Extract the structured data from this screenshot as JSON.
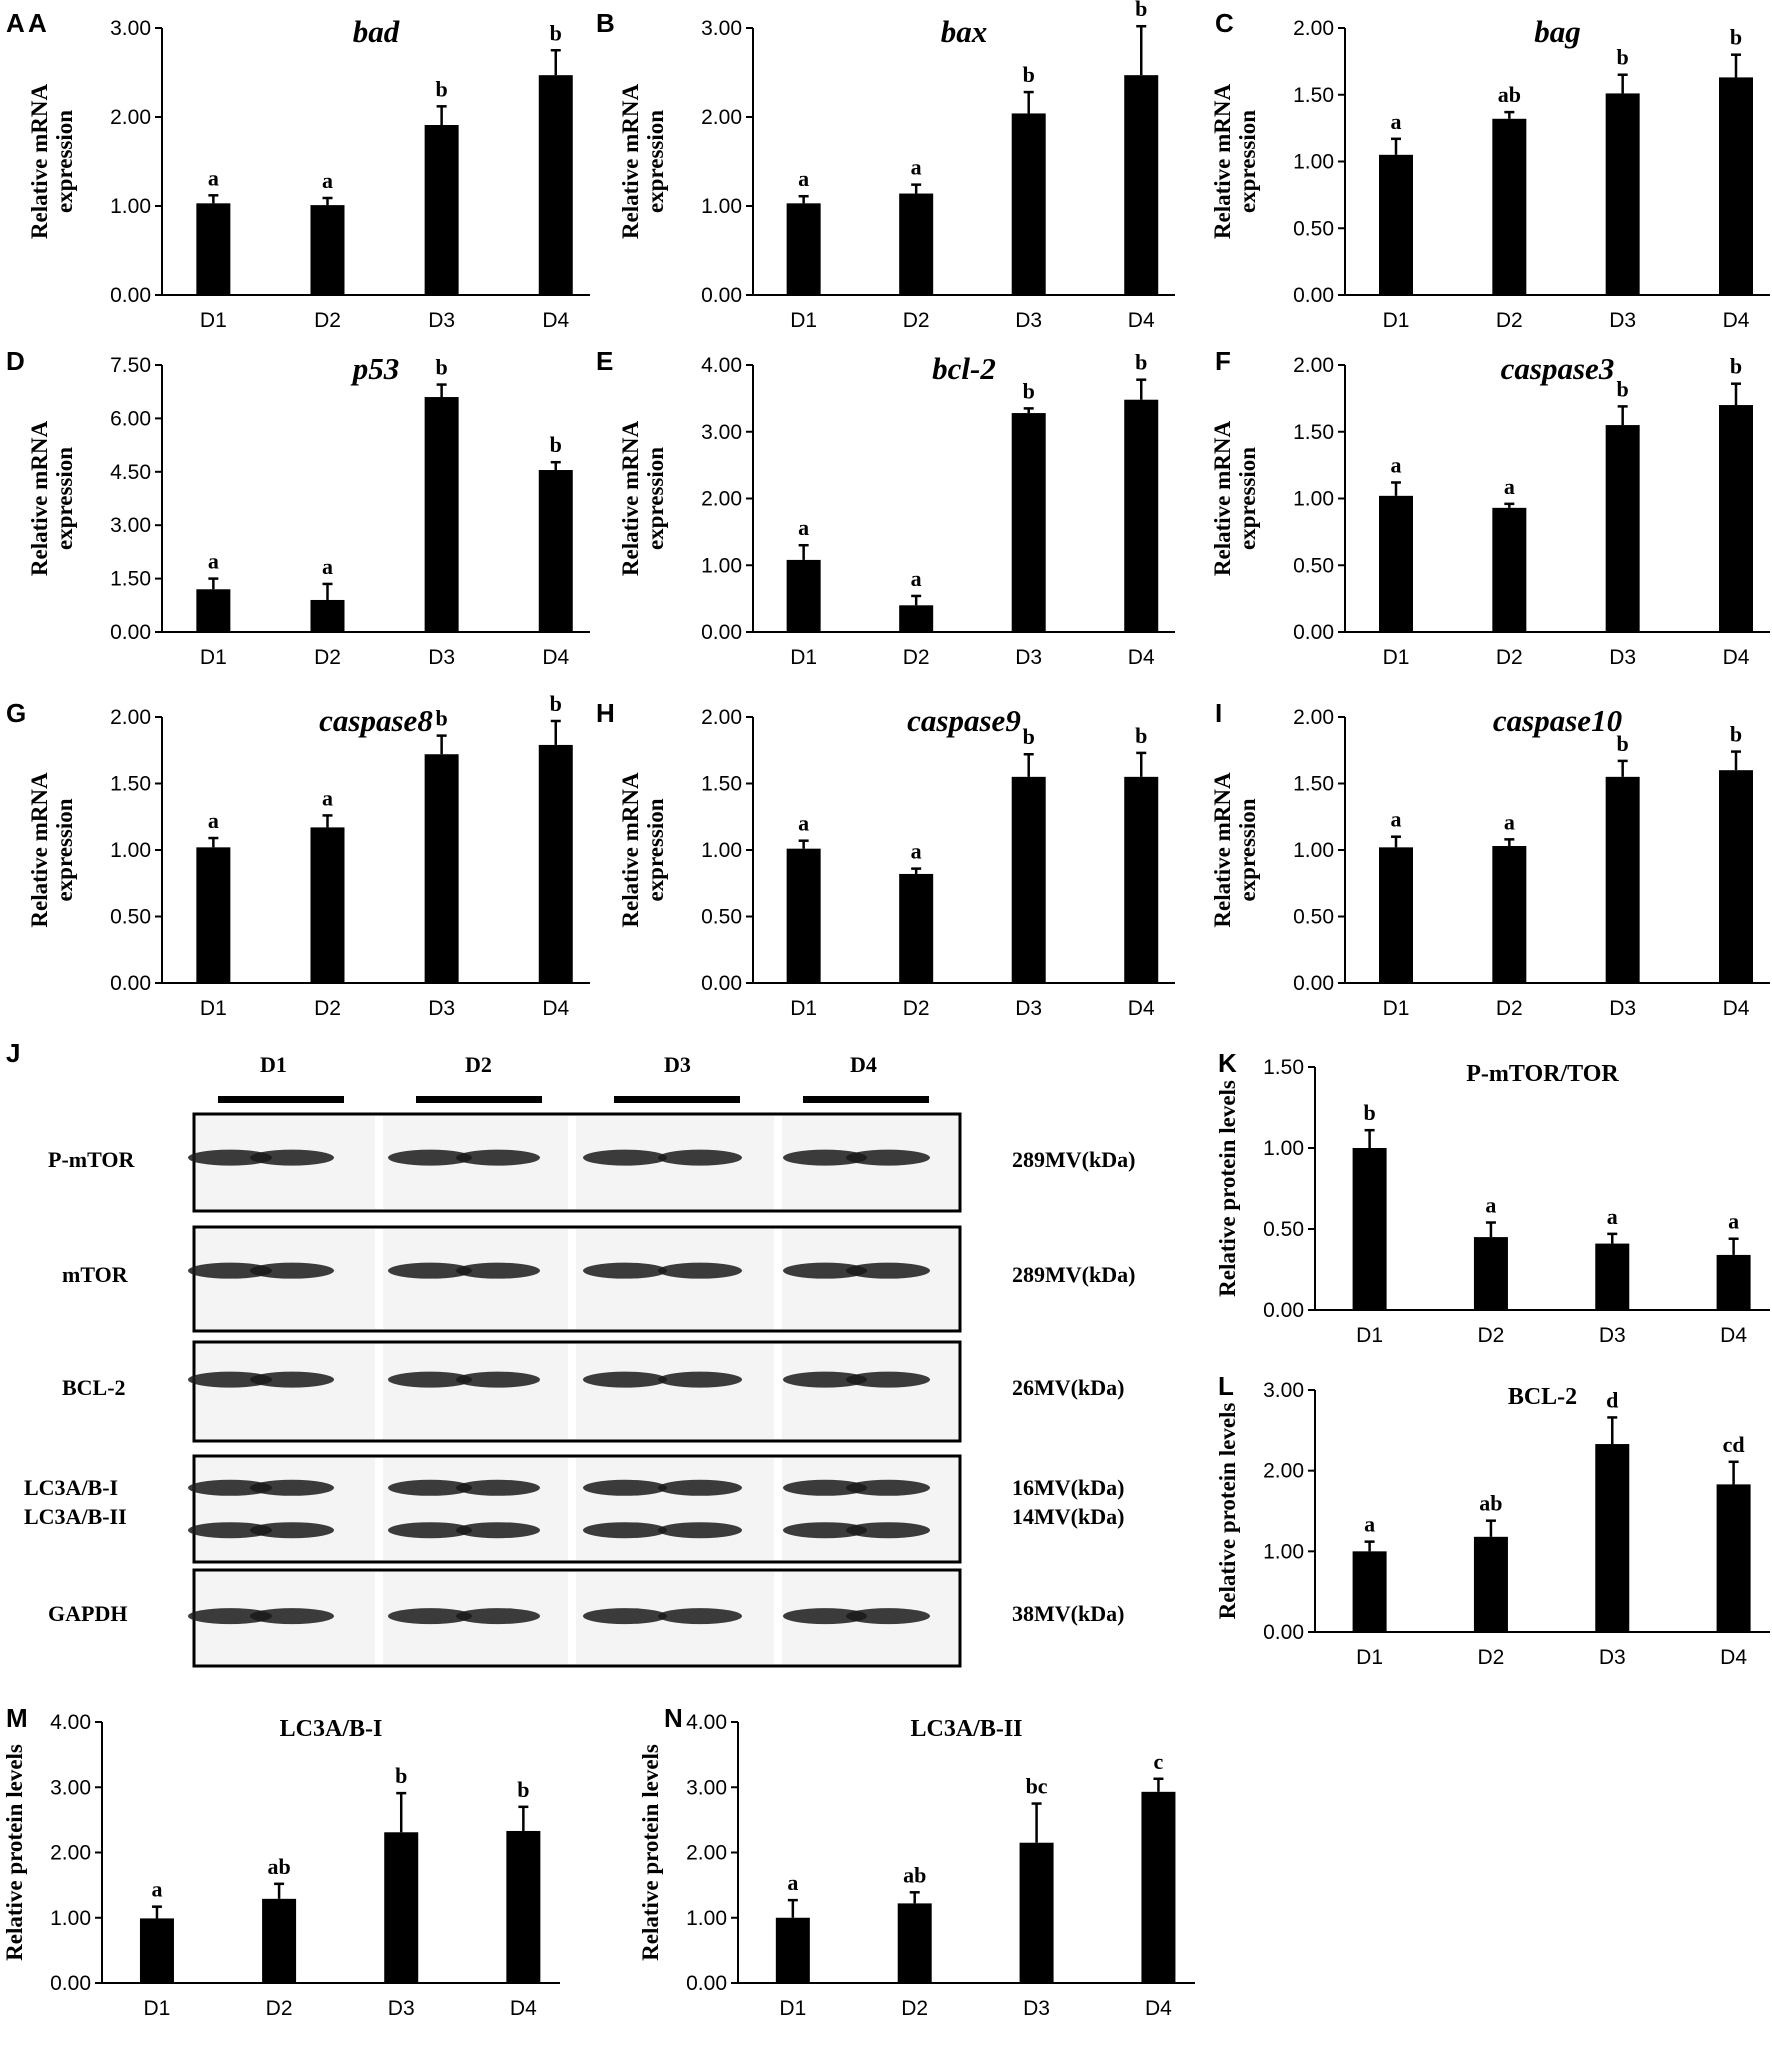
{
  "chart_data": [
    {
      "panel": "A",
      "type": "bar",
      "title": "bad",
      "italic": true,
      "ylabel": [
        "Relative mRNA",
        "expression"
      ],
      "categories": [
        "D1",
        "D2",
        "D3",
        "D4"
      ],
      "values": [
        1.03,
        1.01,
        1.91,
        2.47
      ],
      "errors": [
        0.09,
        0.08,
        0.21,
        0.28
      ],
      "labels": [
        "a",
        "a",
        "b",
        "b"
      ],
      "ylim": [
        0,
        3
      ],
      "yticks": [
        "0.00",
        "1.00",
        "2.00",
        "3.00"
      ]
    },
    {
      "panel": "B",
      "type": "bar",
      "title": "bax",
      "italic": true,
      "ylabel": [
        "Relative mRNA",
        "expression"
      ],
      "categories": [
        "D1",
        "D2",
        "D3",
        "D4"
      ],
      "values": [
        1.03,
        1.14,
        2.04,
        2.47
      ],
      "errors": [
        0.08,
        0.1,
        0.24,
        0.55
      ],
      "labels": [
        "a",
        "a",
        "b",
        "b"
      ],
      "ylim": [
        0,
        3
      ],
      "yticks": [
        "0.00",
        "1.00",
        "2.00",
        "3.00"
      ]
    },
    {
      "panel": "C",
      "type": "bar",
      "title": "bag",
      "italic": true,
      "ylabel": [
        "Relative mRNA",
        "expression"
      ],
      "categories": [
        "D1",
        "D2",
        "D3",
        "D4"
      ],
      "values": [
        1.05,
        1.32,
        1.51,
        1.63
      ],
      "errors": [
        0.12,
        0.05,
        0.14,
        0.17
      ],
      "labels": [
        "a",
        "ab",
        "b",
        "b"
      ],
      "ylim": [
        0,
        2
      ],
      "yticks": [
        "0.00",
        "0.50",
        "1.00",
        "1.50",
        "2.00"
      ]
    },
    {
      "panel": "D",
      "type": "bar",
      "title": "p53",
      "italic": true,
      "ylabel": [
        "Relative mRNA",
        "expression"
      ],
      "categories": [
        "D1",
        "D2",
        "D3",
        "D4"
      ],
      "values": [
        1.2,
        0.9,
        6.6,
        4.55
      ],
      "errors": [
        0.3,
        0.45,
        0.35,
        0.22
      ],
      "labels": [
        "a",
        "a",
        "b",
        "b"
      ],
      "ylim": [
        0,
        7.5
      ],
      "yticks": [
        "0.00",
        "1.50",
        "3.00",
        "4.50",
        "6.00",
        "7.50"
      ]
    },
    {
      "panel": "E",
      "type": "bar",
      "title": "bcl-2",
      "italic": true,
      "ylabel": [
        "Relative mRNA",
        "expression"
      ],
      "categories": [
        "D1",
        "D2",
        "D3",
        "D4"
      ],
      "values": [
        1.08,
        0.4,
        3.28,
        3.48
      ],
      "errors": [
        0.22,
        0.14,
        0.07,
        0.3
      ],
      "labels": [
        "a",
        "a",
        "b",
        "b"
      ],
      "ylim": [
        0,
        4
      ],
      "yticks": [
        "0.00",
        "1.00",
        "2.00",
        "3.00",
        "4.00"
      ]
    },
    {
      "panel": "F",
      "type": "bar",
      "title": "caspase3",
      "italic": true,
      "ylabel": [
        "Relative mRNA",
        "expression"
      ],
      "categories": [
        "D1",
        "D2",
        "D3",
        "D4"
      ],
      "values": [
        1.02,
        0.93,
        1.55,
        1.7
      ],
      "errors": [
        0.1,
        0.03,
        0.14,
        0.16
      ],
      "labels": [
        "a",
        "a",
        "b",
        "b"
      ],
      "ylim": [
        0,
        2
      ],
      "yticks": [
        "0.00",
        "0.50",
        "1.00",
        "1.50",
        "2.00"
      ]
    },
    {
      "panel": "G",
      "type": "bar",
      "title": "caspase8",
      "italic": true,
      "ylabel": [
        "Relative mRNA",
        "expression"
      ],
      "categories": [
        "D1",
        "D2",
        "D3",
        "D4"
      ],
      "values": [
        1.02,
        1.17,
        1.72,
        1.79
      ],
      "errors": [
        0.07,
        0.09,
        0.14,
        0.18
      ],
      "labels": [
        "a",
        "a",
        "b",
        "b"
      ],
      "ylim": [
        0,
        2
      ],
      "yticks": [
        "0.00",
        "0.50",
        "1.00",
        "1.50",
        "2.00"
      ]
    },
    {
      "panel": "H",
      "type": "bar",
      "title": "caspase9",
      "italic": true,
      "ylabel": [
        "Relative mRNA",
        "expression"
      ],
      "categories": [
        "D1",
        "D2",
        "D3",
        "D4"
      ],
      "values": [
        1.01,
        0.82,
        1.55,
        1.55
      ],
      "errors": [
        0.06,
        0.04,
        0.17,
        0.18
      ],
      "labels": [
        "a",
        "a",
        "b",
        "b"
      ],
      "ylim": [
        0,
        2
      ],
      "yticks": [
        "0.00",
        "0.50",
        "1.00",
        "1.50",
        "2.00"
      ]
    },
    {
      "panel": "I",
      "type": "bar",
      "title": "caspase10",
      "italic": true,
      "ylabel": [
        "Relative mRNA",
        "expression"
      ],
      "categories": [
        "D1",
        "D2",
        "D3",
        "D4"
      ],
      "values": [
        1.02,
        1.03,
        1.55,
        1.6
      ],
      "errors": [
        0.08,
        0.05,
        0.12,
        0.14
      ],
      "labels": [
        "a",
        "a",
        "b",
        "b"
      ],
      "ylim": [
        0,
        2
      ],
      "yticks": [
        "0.00",
        "0.50",
        "1.00",
        "1.50",
        "2.00"
      ]
    },
    {
      "panel": "K",
      "type": "bar",
      "title": "P-mTOR/TOR",
      "italic": false,
      "ylabel": [
        "Relative protein levels"
      ],
      "categories": [
        "D1",
        "D2",
        "D3",
        "D4"
      ],
      "values": [
        1.0,
        0.45,
        0.41,
        0.34
      ],
      "errors": [
        0.11,
        0.09,
        0.06,
        0.1
      ],
      "labels": [
        "b",
        "a",
        "a",
        "a"
      ],
      "ylim": [
        0,
        1.5
      ],
      "yticks": [
        "0.00",
        "0.50",
        "1.00",
        "1.50"
      ]
    },
    {
      "panel": "L",
      "type": "bar",
      "title": "BCL-2",
      "italic": false,
      "ylabel": [
        "Relative protein levels"
      ],
      "categories": [
        "D1",
        "D2",
        "D3",
        "D4"
      ],
      "values": [
        1.0,
        1.18,
        2.33,
        1.83
      ],
      "errors": [
        0.12,
        0.2,
        0.33,
        0.28
      ],
      "labels": [
        "a",
        "ab",
        "d",
        "cd"
      ],
      "ylim": [
        0,
        3
      ],
      "yticks": [
        "0.00",
        "1.00",
        "2.00",
        "3.00"
      ]
    },
    {
      "panel": "M",
      "type": "bar",
      "title": "LC3A/B-I",
      "italic": false,
      "ylabel": [
        "Relative protein levels"
      ],
      "categories": [
        "D1",
        "D2",
        "D3",
        "D4"
      ],
      "values": [
        0.99,
        1.29,
        2.31,
        2.33
      ],
      "errors": [
        0.18,
        0.23,
        0.6,
        0.37
      ],
      "labels": [
        "a",
        "ab",
        "b",
        "b"
      ],
      "ylim": [
        0,
        4
      ],
      "yticks": [
        "0.00",
        "1.00",
        "2.00",
        "3.00",
        "4.00"
      ]
    },
    {
      "panel": "N",
      "type": "bar",
      "title": "LC3A/B-II",
      "italic": false,
      "ylabel": [
        "Relative protein levels"
      ],
      "categories": [
        "D1",
        "D2",
        "D3",
        "D4"
      ],
      "values": [
        1.0,
        1.22,
        2.15,
        2.93
      ],
      "errors": [
        0.27,
        0.17,
        0.6,
        0.2
      ],
      "labels": [
        "a",
        "ab",
        "bc",
        "c"
      ],
      "ylim": [
        0,
        4
      ],
      "yticks": [
        "0.00",
        "1.00",
        "2.00",
        "3.00",
        "4.00"
      ]
    }
  ],
  "extra_letter": "A",
  "blot": {
    "panel": "J",
    "groups": [
      "D1",
      "D2",
      "D3",
      "D4"
    ],
    "rows": [
      {
        "label": "P-mTOR",
        "size": "289MV(kDa)"
      },
      {
        "label": "mTOR",
        "size": "289MV(kDa)"
      },
      {
        "label": "BCL-2",
        "size": "26MV(kDa)"
      },
      {
        "label": "LC3A/B-I",
        "label2": "LC3A/B-II",
        "size": "16MV(kDa)",
        "size2": "14MV(kDa)"
      },
      {
        "label": "GAPDH",
        "size": "38MV(kDa)"
      }
    ]
  }
}
